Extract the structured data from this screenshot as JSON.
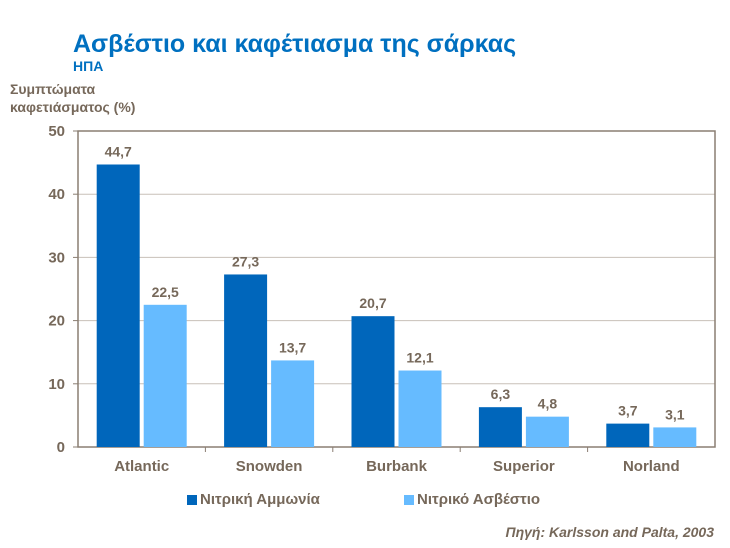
{
  "chart_data": {
    "type": "bar",
    "title": "Ασβέστιο και καφέτιασμα της σάρκας",
    "subtitle": "ΗΠΑ",
    "ylabel": "Συμπτώματα καφετιάσματος (%)",
    "ylabel_lines": [
      "Συμπτώματα",
      "καφετιάσματος (%)"
    ],
    "xlabel": "",
    "ylim": [
      0,
      50
    ],
    "yticks": [
      0,
      10,
      20,
      30,
      40,
      50
    ],
    "grid": true,
    "legend_position": "bottom",
    "categories": [
      "Atlantic",
      "Snowden",
      "Burbank",
      "Superior",
      "Norland"
    ],
    "series": [
      {
        "name": "Νιτρική Αμμωνία",
        "color": "#0066bb",
        "values": [
          44.7,
          27.3,
          20.7,
          6.3,
          3.7
        ],
        "labels": [
          "44,7",
          "27,3",
          "20,7",
          "6,3",
          "3,7"
        ]
      },
      {
        "name": "Νιτρικό Ασβέστιο",
        "color": "#66bbff",
        "values": [
          22.5,
          13.7,
          12.1,
          4.8,
          3.1
        ],
        "labels": [
          "22,5",
          "13,7",
          "12,1",
          "4,8",
          "3,1"
        ]
      }
    ],
    "source": "Πηγή: Karlsson and Palta, 2003"
  }
}
